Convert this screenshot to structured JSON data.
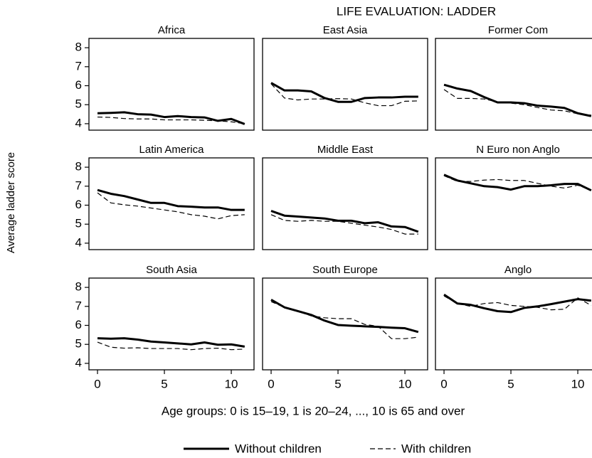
{
  "title": "LIFE EVALUATION: LADDER",
  "y_label": "Average ladder score",
  "x_label": "Age groups: 0 is 15–19, 1 is 20–24, ..., 10 is 65 and over",
  "chart_data": [
    {
      "type": "line",
      "title": "Africa",
      "x": [
        0,
        1,
        2,
        3,
        4,
        5,
        6,
        7,
        8,
        9,
        10,
        11
      ],
      "xlim": [
        -0.64,
        11.7
      ],
      "ylim": [
        3.66,
        8.49
      ],
      "yticks": [
        4,
        5,
        6,
        7,
        8
      ],
      "series": [
        {
          "name": "Without children",
          "color": "#000000",
          "style": "solid",
          "values": [
            4.55,
            4.57,
            4.6,
            4.5,
            4.48,
            4.35,
            4.4,
            4.35,
            4.33,
            4.15,
            4.25,
            3.98
          ]
        },
        {
          "name": "With children",
          "color": "#000000",
          "style": "dashed",
          "values": [
            4.35,
            4.33,
            4.27,
            4.25,
            4.25,
            4.2,
            4.2,
            4.2,
            4.18,
            4.15,
            4.1,
            4.0
          ]
        }
      ]
    },
    {
      "type": "line",
      "title": "East Asia",
      "x": [
        0,
        1,
        2,
        3,
        4,
        5,
        6,
        7,
        8,
        9,
        10,
        11
      ],
      "xlim": [
        -0.64,
        11.7
      ],
      "ylim": [
        3.66,
        8.49
      ],
      "series": [
        {
          "name": "Without children",
          "color": "#000000",
          "style": "solid",
          "values": [
            6.15,
            5.75,
            5.75,
            5.7,
            5.35,
            5.15,
            5.15,
            5.35,
            5.38,
            5.38,
            5.42,
            5.42
          ]
        },
        {
          "name": "With children",
          "color": "#000000",
          "style": "dashed",
          "values": [
            6.1,
            5.35,
            5.25,
            5.3,
            5.3,
            5.32,
            5.3,
            5.1,
            4.95,
            4.95,
            5.18,
            5.2
          ]
        }
      ]
    },
    {
      "type": "line",
      "title": "Former Com",
      "x": [
        0,
        1,
        2,
        3,
        4,
        5,
        6,
        7,
        8,
        9,
        10,
        11
      ],
      "xlim": [
        -0.64,
        11.7
      ],
      "ylim": [
        3.66,
        8.49
      ],
      "series": [
        {
          "name": "Without children",
          "color": "#000000",
          "style": "solid",
          "values": [
            6.05,
            5.85,
            5.72,
            5.4,
            5.12,
            5.12,
            5.08,
            4.95,
            4.9,
            4.83,
            4.55,
            4.4
          ]
        },
        {
          "name": "With children",
          "color": "#000000",
          "style": "dashed",
          "values": [
            5.8,
            5.33,
            5.33,
            5.3,
            5.15,
            5.08,
            5.0,
            4.85,
            4.72,
            4.68,
            4.52,
            4.45
          ]
        }
      ]
    },
    {
      "type": "line",
      "title": "Latin America",
      "x": [
        0,
        1,
        2,
        3,
        4,
        5,
        6,
        7,
        8,
        9,
        10,
        11
      ],
      "xlim": [
        -0.64,
        11.7
      ],
      "ylim": [
        3.66,
        8.49
      ],
      "yticks": [
        4,
        5,
        6,
        7,
        8
      ],
      "series": [
        {
          "name": "Without children",
          "color": "#000000",
          "style": "solid",
          "values": [
            6.8,
            6.6,
            6.48,
            6.3,
            6.12,
            6.12,
            5.95,
            5.92,
            5.88,
            5.88,
            5.75,
            5.75
          ]
        },
        {
          "name": "With children",
          "color": "#000000",
          "style": "dashed",
          "values": [
            6.65,
            6.12,
            6.02,
            5.95,
            5.85,
            5.75,
            5.65,
            5.5,
            5.42,
            5.28,
            5.45,
            5.5
          ]
        }
      ]
    },
    {
      "type": "line",
      "title": "Middle East",
      "x": [
        0,
        1,
        2,
        3,
        4,
        5,
        6,
        7,
        8,
        9,
        10,
        11
      ],
      "xlim": [
        -0.64,
        11.7
      ],
      "ylim": [
        3.66,
        8.49
      ],
      "series": [
        {
          "name": "Without children",
          "color": "#000000",
          "style": "solid",
          "values": [
            5.7,
            5.45,
            5.4,
            5.35,
            5.3,
            5.18,
            5.18,
            5.05,
            5.1,
            4.88,
            4.85,
            4.6
          ]
        },
        {
          "name": "With children",
          "color": "#000000",
          "style": "dashed",
          "values": [
            5.5,
            5.2,
            5.15,
            5.2,
            5.15,
            5.15,
            5.05,
            4.95,
            4.85,
            4.72,
            4.48,
            4.48
          ]
        }
      ]
    },
    {
      "type": "line",
      "title": "N Euro non Anglo",
      "x": [
        0,
        1,
        2,
        3,
        4,
        5,
        6,
        7,
        8,
        9,
        10,
        11
      ],
      "xlim": [
        -0.64,
        11.7
      ],
      "ylim": [
        3.66,
        8.49
      ],
      "series": [
        {
          "name": "Without children",
          "color": "#000000",
          "style": "solid",
          "values": [
            7.6,
            7.3,
            7.15,
            7.0,
            6.95,
            6.82,
            7.0,
            7.0,
            7.05,
            7.12,
            7.12,
            6.78
          ]
        },
        {
          "name": "With children",
          "color": "#000000",
          "style": "dashed",
          "values": [
            7.55,
            7.25,
            7.25,
            7.32,
            7.35,
            7.3,
            7.3,
            7.15,
            7.0,
            6.9,
            7.05,
            6.8
          ]
        }
      ]
    },
    {
      "type": "line",
      "title": "South Asia",
      "x": [
        0,
        1,
        2,
        3,
        4,
        5,
        6,
        7,
        8,
        9,
        10,
        11
      ],
      "xlim": [
        -0.64,
        11.7
      ],
      "ylim": [
        3.66,
        8.49
      ],
      "yticks": [
        4,
        5,
        6,
        7,
        8
      ],
      "xticks": [
        0,
        5,
        10
      ],
      "series": [
        {
          "name": "Without children",
          "color": "#000000",
          "style": "solid",
          "values": [
            5.32,
            5.3,
            5.32,
            5.25,
            5.15,
            5.1,
            5.05,
            5.0,
            5.1,
            4.98,
            5.0,
            4.88
          ]
        },
        {
          "name": "With children",
          "color": "#000000",
          "style": "dashed",
          "values": [
            5.12,
            4.85,
            4.8,
            4.82,
            4.78,
            4.78,
            4.78,
            4.72,
            4.78,
            4.8,
            4.72,
            4.75
          ]
        }
      ]
    },
    {
      "type": "line",
      "title": "South Europe",
      "x": [
        0,
        1,
        2,
        3,
        4,
        5,
        6,
        7,
        8,
        9,
        10,
        11
      ],
      "xlim": [
        -0.64,
        11.7
      ],
      "ylim": [
        3.66,
        8.49
      ],
      "xticks": [
        0,
        5,
        10
      ],
      "series": [
        {
          "name": "Without children",
          "color": "#000000",
          "style": "solid",
          "values": [
            7.35,
            6.95,
            6.75,
            6.55,
            6.25,
            6.02,
            5.98,
            5.95,
            5.92,
            5.88,
            5.85,
            5.65
          ]
        },
        {
          "name": "With children",
          "color": "#000000",
          "style": "dashed",
          "values": [
            7.25,
            6.95,
            6.75,
            6.5,
            6.4,
            6.35,
            6.35,
            6.05,
            5.95,
            5.3,
            5.3,
            5.38
          ]
        }
      ]
    },
    {
      "type": "line",
      "title": "Anglo",
      "x": [
        0,
        1,
        2,
        3,
        4,
        5,
        6,
        7,
        8,
        9,
        10,
        11
      ],
      "xlim": [
        -0.64,
        11.7
      ],
      "ylim": [
        3.66,
        8.49
      ],
      "xticks": [
        0,
        5,
        10
      ],
      "series": [
        {
          "name": "Without children",
          "color": "#000000",
          "style": "solid",
          "values": [
            7.62,
            7.15,
            7.08,
            6.9,
            6.75,
            6.7,
            6.92,
            7.0,
            7.12,
            7.25,
            7.38,
            7.3
          ]
        },
        {
          "name": "With children",
          "color": "#000000",
          "style": "dashed",
          "values": [
            7.55,
            7.15,
            7.0,
            7.15,
            7.2,
            7.05,
            7.0,
            6.95,
            6.82,
            6.85,
            7.45,
            7.05
          ]
        }
      ]
    }
  ]
}
